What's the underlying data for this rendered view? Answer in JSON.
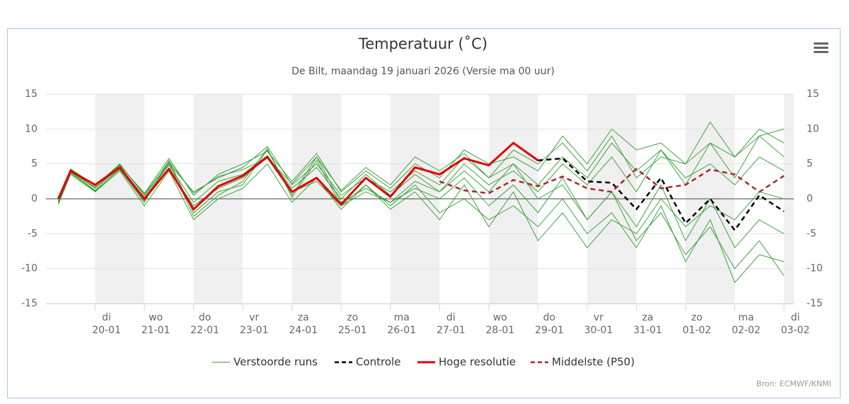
{
  "chart_data": {
    "type": "line",
    "title": "Temperatuur (˚C)",
    "subtitle": "De Bilt, maandag 19 januari 2026 (Versie ma 00 uur)",
    "credit": "Bron: ECMWF/KNMI",
    "xlim": [
      -1,
      14.2
    ],
    "xticks": [
      {
        "value": 0,
        "label": "di\n20-01"
      },
      {
        "value": 1,
        "label": "wo\n21-01"
      },
      {
        "value": 2,
        "label": "do\n22-01"
      },
      {
        "value": 3,
        "label": "vr\n23-01"
      },
      {
        "value": 4,
        "label": "za\n24-01"
      },
      {
        "value": 5,
        "label": "zo\n25-01"
      },
      {
        "value": 6,
        "label": "ma\n26-01"
      },
      {
        "value": 7,
        "label": "di\n27-01"
      },
      {
        "value": 8,
        "label": "wo\n28-01"
      },
      {
        "value": 9,
        "label": "do\n29-01"
      },
      {
        "value": 10,
        "label": "vr\n30-01"
      },
      {
        "value": 11,
        "label": "za\n31-01"
      },
      {
        "value": 12,
        "label": "zo\n01-02"
      },
      {
        "value": 13,
        "label": "ma\n02-02"
      },
      {
        "value": 14,
        "label": "di\n03-02"
      }
    ],
    "ylim": [
      -15,
      15
    ],
    "yticks": [
      -15,
      -10,
      -5,
      0,
      5,
      10,
      15
    ],
    "grid": true,
    "x": [
      -0.75,
      -0.5,
      0,
      0.5,
      1,
      1.5,
      2,
      2.5,
      3,
      3.5,
      4,
      4.5,
      5,
      5.5,
      6,
      6.5,
      7,
      7.5,
      8,
      8.5,
      9,
      9.5,
      10,
      10.5,
      11,
      11.5,
      12,
      12.5,
      13,
      13.5,
      14
    ],
    "ensemble": {
      "name": "Verstoorde runs",
      "color": "#2e9a2e",
      "members": [
        [
          -0.5,
          3.8,
          1.2,
          4.2,
          -0.5,
          5.5,
          -2,
          1,
          2,
          7,
          0.5,
          6,
          -0.5,
          1.5,
          -0.5,
          2.5,
          1,
          4,
          1,
          5,
          2,
          6,
          3,
          8,
          4,
          7,
          2,
          8,
          3,
          9,
          6
        ],
        [
          0,
          4.2,
          1.8,
          5,
          0.5,
          5,
          1,
          3,
          4.5,
          7.5,
          2,
          5,
          0.5,
          3,
          1,
          4,
          2,
          6,
          3,
          5,
          0,
          2,
          -3,
          1,
          -6,
          -2,
          -8,
          -4,
          -10,
          -6,
          -11
        ],
        [
          -0.8,
          3.5,
          1,
          4,
          -1,
          4,
          -3,
          0,
          1.5,
          5,
          -0.5,
          3,
          -1.5,
          2,
          -1,
          2,
          -2,
          0,
          -3,
          -1,
          -4,
          0,
          -5,
          -2,
          -7,
          -1,
          -9,
          -3,
          -12,
          -8,
          -9
        ],
        [
          0.2,
          4.1,
          2,
          4.8,
          0.8,
          5.8,
          0.5,
          3.5,
          5,
          6.8,
          2.5,
          6.5,
          1,
          4,
          1.5,
          5,
          3,
          7,
          5,
          6,
          4,
          9,
          5,
          10,
          7,
          8,
          5,
          11,
          6,
          10,
          8
        ],
        [
          -0.3,
          3.9,
          1.5,
          4.4,
          0,
          4.2,
          -1,
          1.5,
          3,
          6,
          1,
          2.5,
          -1,
          1,
          -0.5,
          1.5,
          0,
          3,
          -1,
          2,
          -2,
          3,
          -3,
          1,
          -4,
          2,
          -6,
          0,
          -7,
          -3,
          -5
        ],
        [
          0,
          4,
          1.6,
          4.6,
          0.2,
          4.8,
          -0.5,
          2.5,
          3.5,
          6.2,
          1.5,
          4.5,
          0,
          3.5,
          0.5,
          3.5,
          1,
          5,
          2,
          4,
          1,
          5,
          2,
          6,
          1,
          7,
          3,
          5,
          2,
          6,
          4
        ],
        [
          -0.6,
          3.7,
          1.1,
          4.3,
          -0.3,
          5.2,
          -2.5,
          0.5,
          2.5,
          7.2,
          0.2,
          5.5,
          -1,
          2,
          -1.5,
          1,
          -3,
          2,
          -4,
          1,
          -6,
          -2,
          -7,
          -3,
          -5,
          0,
          -4,
          -1,
          -3,
          1,
          0
        ],
        [
          0.1,
          4.3,
          1.9,
          4.9,
          0.6,
          5.4,
          0.8,
          3.2,
          4.2,
          5.8,
          2.2,
          6,
          1.2,
          4.5,
          2,
          6,
          4,
          6.5,
          3,
          7,
          5,
          8,
          4,
          9,
          3,
          6,
          5,
          8,
          6,
          9,
          10
        ]
      ]
    },
    "series": [
      {
        "name": "Controle",
        "color": "#000000",
        "dash": true,
        "values": [
          null,
          null,
          null,
          null,
          null,
          null,
          null,
          null,
          null,
          null,
          null,
          null,
          null,
          null,
          null,
          null,
          null,
          null,
          null,
          null,
          5.5,
          5.8,
          2.5,
          2.3,
          -1.5,
          3,
          -3.5,
          0,
          -4.5,
          0.5,
          -1.8
        ]
      },
      {
        "name": "Hoge resolutie",
        "color": "#e00000",
        "dash": false,
        "values": [
          0,
          4,
          2,
          4.5,
          0,
          4.3,
          -1.5,
          1.8,
          3.3,
          6,
          1,
          3,
          -0.8,
          3,
          0.3,
          4.5,
          3.5,
          5.8,
          4.8,
          8,
          5.5,
          null,
          null,
          null,
          null,
          null,
          null,
          null,
          null,
          null,
          null
        ]
      },
      {
        "name": "Middelste (P50)",
        "color": "#a52a2a",
        "dash": true,
        "values": [
          null,
          null,
          null,
          null,
          null,
          null,
          null,
          null,
          null,
          null,
          null,
          null,
          null,
          null,
          null,
          null,
          2.5,
          1.2,
          0.8,
          2.7,
          1.8,
          3.2,
          1.5,
          1,
          4.3,
          1.5,
          2,
          4.2,
          3.5,
          1,
          3.3
        ]
      }
    ]
  }
}
